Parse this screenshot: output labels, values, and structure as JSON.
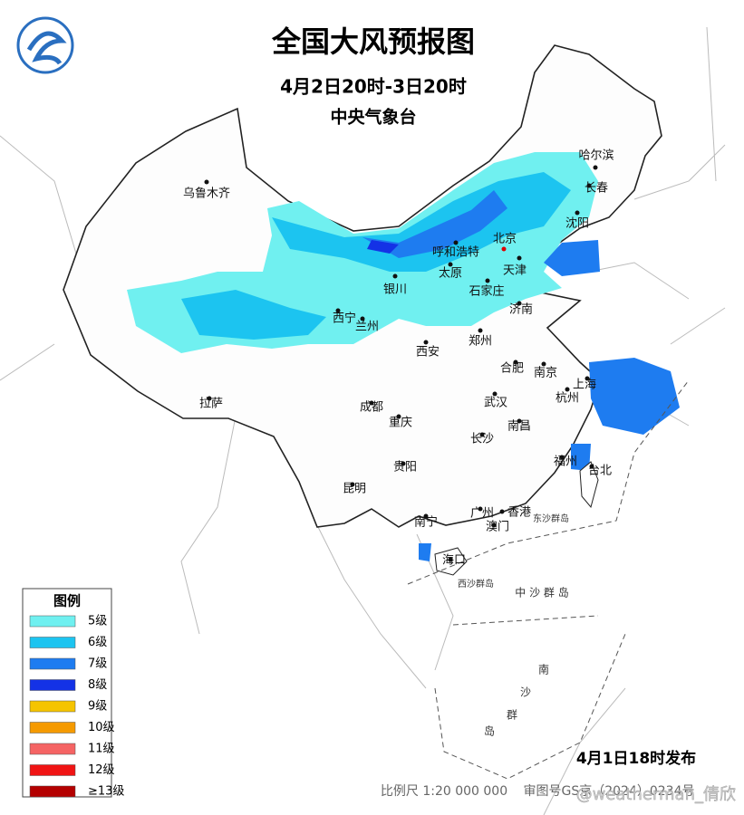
{
  "header": {
    "title": "全国大风预报图",
    "period": "4月2日20时-3日20时",
    "issuer": "中央气象台"
  },
  "cities": [
    "哈尔滨",
    "长春",
    "沈阳",
    "乌鲁木齐",
    "北京",
    "呼和浩特",
    "天津",
    "太原",
    "石家庄",
    "银川",
    "西宁",
    "兰州",
    "济南",
    "西安",
    "郑州",
    "合肥",
    "南京",
    "上海",
    "杭州",
    "拉萨",
    "成都",
    "武汉",
    "重庆",
    "南昌",
    "长沙",
    "福州",
    "台北",
    "贵阳",
    "昆明",
    "广州",
    "香港",
    "澳门",
    "南宁",
    "海口"
  ],
  "islands": [
    "东沙群岛",
    "西沙群岛",
    "中 沙 群 岛",
    "南",
    "沙",
    "群",
    "岛"
  ],
  "legend": {
    "title": "图例",
    "items": [
      {
        "label": "5级",
        "color": "#70f0f0"
      },
      {
        "label": "6级",
        "color": "#1cc4f0"
      },
      {
        "label": "7级",
        "color": "#1e7cf0"
      },
      {
        "label": "8级",
        "color": "#1432e6"
      },
      {
        "label": "9级",
        "color": "#f5c400"
      },
      {
        "label": "10级",
        "color": "#f59a00"
      },
      {
        "label": "11级",
        "color": "#f56464"
      },
      {
        "label": "12级",
        "color": "#f01414"
      },
      {
        "label": "≥13级",
        "color": "#b40000"
      }
    ]
  },
  "footer": {
    "issued": "4月1日18时发布",
    "scale": "比例尺 1:20 000 000",
    "review": "审图号GS京（2024）0234号",
    "watermark": "@weatherman_倩欣"
  }
}
